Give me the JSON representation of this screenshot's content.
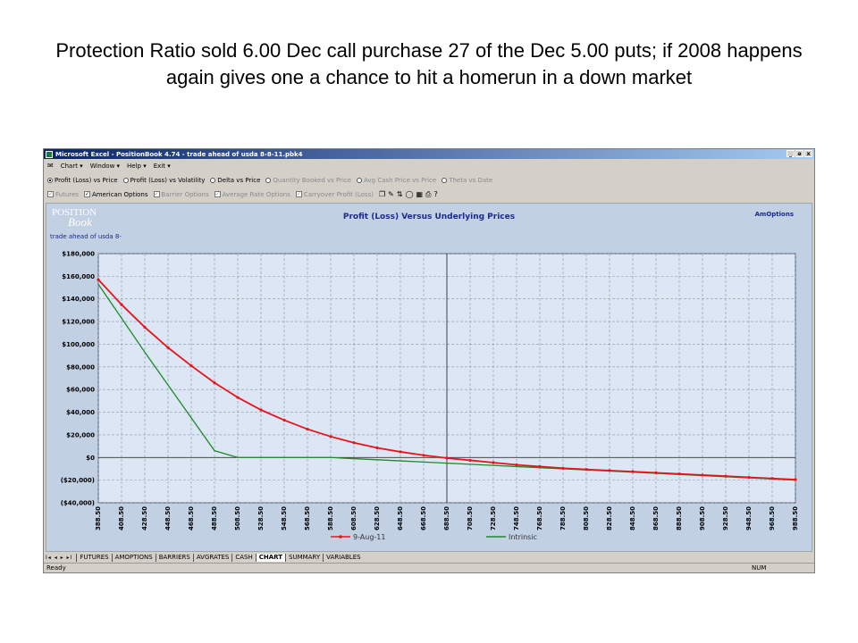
{
  "slide": {
    "title": "Protection Ratio sold 6.00 Dec call purchase 27 of the Dec 5.00 puts; if 2008 happens again gives one a chance to hit a homerun in a down market"
  },
  "window": {
    "title": "Microsoft Excel - PositionBook 4.74  -  trade ahead of usda 8-8-11.pbk4",
    "buttons": [
      "_",
      "ə",
      "x"
    ]
  },
  "menu": [
    "Chart ▾",
    "Window ▾",
    "Help ▾",
    "Exit ▾"
  ],
  "radios": [
    {
      "label": "Profit (Loss) vs Price",
      "checked": true,
      "disabled": false
    },
    {
      "label": "Profit (Loss) vs Volatility",
      "checked": false,
      "disabled": false
    },
    {
      "label": "Delta vs Price",
      "checked": false,
      "disabled": false
    },
    {
      "label": "Quantity Booked vs Price",
      "checked": false,
      "disabled": true
    },
    {
      "label": "Avg Cash Price vs Price",
      "checked": false,
      "disabled": true
    },
    {
      "label": "Theta vs Date",
      "checked": false,
      "disabled": true
    }
  ],
  "checks": [
    {
      "label": "Futures",
      "checked": true,
      "disabled": true
    },
    {
      "label": "American Options",
      "checked": true,
      "disabled": false
    },
    {
      "label": "Barrier Options",
      "checked": true,
      "disabled": true
    },
    {
      "label": "Average Rate Options",
      "checked": true,
      "disabled": true
    },
    {
      "label": "Carryover Profit (Loss)",
      "checked": true,
      "disabled": true
    }
  ],
  "logo": {
    "line1": "POSITION",
    "line2": "Book"
  },
  "sheet_subtitle": "trade ahead of usda 8-",
  "chart_tag": "AmOptions",
  "tabs": [
    "FUTURES",
    "AMOPTIONS",
    "BARRIERS",
    "AVGRATES",
    "CASH",
    "CHART",
    "SUMMARY",
    "VARIABLES"
  ],
  "active_tab": "CHART",
  "tab_nav": "I◂ ◂ ▸ ▸I",
  "status": {
    "left": "Ready",
    "right": "NUM"
  },
  "colors": {
    "series1": "#e8141c",
    "series2": "#1e8a2a",
    "plot_bg": "#dce6f4",
    "chart_bg": "#c2d0e4",
    "title": "#1a2a8a"
  },
  "chart_data": {
    "type": "line",
    "title": "Profit (Loss) Versus Underlying Prices",
    "xlabel": "",
    "ylabel": "",
    "x": [
      388.5,
      408.5,
      428.5,
      448.5,
      468.5,
      488.5,
      508.5,
      528.5,
      548.5,
      568.5,
      588.5,
      608.5,
      628.5,
      648.5,
      668.5,
      688.5,
      708.5,
      728.5,
      748.5,
      768.5,
      788.5,
      808.5,
      828.5,
      848.5,
      868.5,
      888.5,
      908.5,
      928.5,
      948.5,
      968.5,
      988.5
    ],
    "x_tick_labels": [
      "388.50",
      "408.50",
      "428.50",
      "448.50",
      "468.50",
      "488.50",
      "508.50",
      "528.50",
      "548.50",
      "568.50",
      "588.50",
      "608.50",
      "628.50",
      "648.50",
      "668.50",
      "688.50",
      "708.50",
      "728.50",
      "748.50",
      "768.50",
      "788.50",
      "808.50",
      "828.50",
      "848.50",
      "868.50",
      "888.50",
      "908.50",
      "928.50",
      "948.50",
      "968.50",
      "988.50"
    ],
    "ylim": [
      -40000,
      180000
    ],
    "y_ticks": [
      -40000,
      -20000,
      0,
      20000,
      40000,
      60000,
      80000,
      100000,
      120000,
      140000,
      160000,
      180000
    ],
    "y_tick_labels": [
      "($40,000)",
      "($20,000)",
      "$0",
      "$20,000",
      "$40,000",
      "$60,000",
      "$80,000",
      "$100,000",
      "$120,000",
      "$140,000",
      "$160,000",
      "$180,000"
    ],
    "vline_x": 688.5,
    "grid": true,
    "legend_position": "bottom",
    "series": [
      {
        "name": "9-Aug-11",
        "values": [
          157000,
          135000,
          115000,
          97000,
          81000,
          66000,
          53000,
          42000,
          33000,
          25000,
          18500,
          13000,
          8500,
          5000,
          2000,
          -500,
          -2500,
          -4500,
          -6500,
          -8000,
          -9500,
          -10500,
          -11500,
          -12500,
          -13500,
          -14500,
          -15500,
          -16500,
          -17500,
          -18500,
          -19500
        ]
      },
      {
        "name": "Intrinsic",
        "values": [
          153000,
          123000,
          93000,
          64000,
          35000,
          6000,
          0,
          0,
          0,
          0,
          0,
          -1000,
          -2000,
          -3000,
          -4000,
          -5000,
          -6000,
          -7000,
          -8000,
          -9000,
          -10000,
          -11000,
          -12000,
          -13000,
          -14000,
          -15000,
          -16000,
          -17000,
          -18000,
          -19000,
          -20000
        ]
      }
    ]
  }
}
